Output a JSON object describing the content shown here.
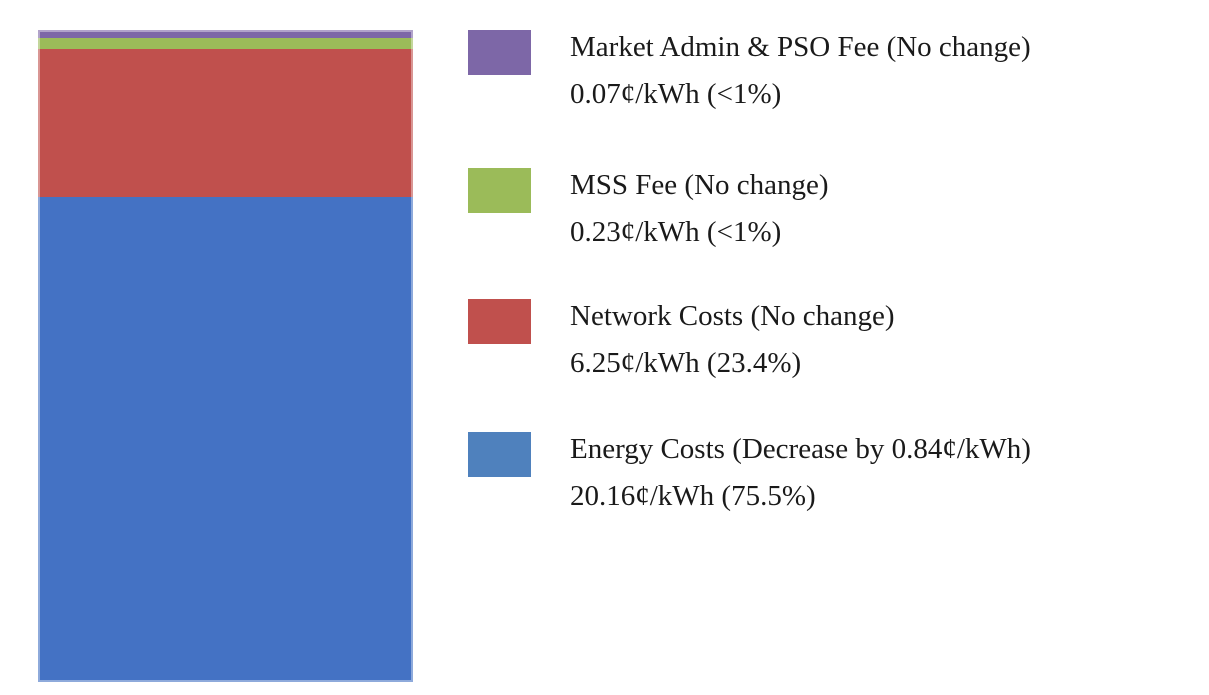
{
  "page": {
    "background": "#FFFFFF",
    "text_color": "#1A1A1A"
  },
  "chart_data": {
    "type": "bar",
    "variant": "single-stacked-column",
    "orientation": "vertical",
    "title": "",
    "xlabel": "",
    "ylabel": "",
    "axes_visible": false,
    "grid": false,
    "data_labels": false,
    "legend_position": "right",
    "unit": "¢/kWh",
    "segments_top_to_bottom": [
      {
        "id": "market-admin-pso-fee",
        "label": "Market Admin & PSO Fee (No change)",
        "value": 0.07,
        "percent_label": "<1%",
        "color": "#7D67A7",
        "render_height": "1.23%"
      },
      {
        "id": "mss-fee",
        "label": "MSS Fee (No change)",
        "value": 0.23,
        "percent_label": "<1%",
        "color": "#9BBB59",
        "render_height": "1.69%"
      },
      {
        "id": "network-costs",
        "label": "Network Costs (No change)",
        "value": 6.25,
        "percent_label": "23.4%",
        "color": "#C0504D",
        "render_height": "22.70%"
      },
      {
        "id": "energy-costs",
        "label": "Energy Costs (Decrease by 0.84¢/kWh)",
        "value": 20.16,
        "percent_label": "75.5%",
        "color": "#4472C4",
        "render_height": "74.38%"
      }
    ]
  },
  "legend": {
    "items": [
      {
        "line1": "Market Admin & PSO Fee (No change)",
        "line2": "0.07¢/kWh (<1%)",
        "color": "#7D67A7"
      },
      {
        "line1": "MSS Fee (No change)",
        "line2": "0.23¢/kWh (<1%)",
        "color": "#9BBB59"
      },
      {
        "line1": "Network Costs (No change)",
        "line2": "6.25¢/kWh (23.4%)",
        "color": "#C0504D"
      },
      {
        "line1": "Energy Costs (Decrease by 0.84¢/kWh)",
        "line2": "20.16¢/kWh (75.5%)",
        "color": "#4F81BD"
      }
    ]
  }
}
